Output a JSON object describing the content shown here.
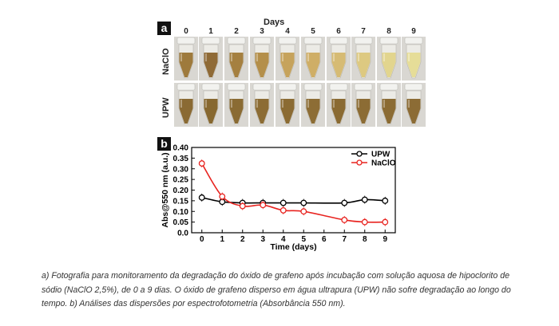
{
  "figure": {
    "panel_a_label": "a",
    "panel_b_label": "b",
    "days_title": "Days",
    "days": [
      "0",
      "1",
      "2",
      "3",
      "4",
      "5",
      "6",
      "7",
      "8",
      "9"
    ],
    "rows": [
      {
        "label": "NaClO",
        "tube_colors": [
          "#9e7a3c",
          "#8f6a36",
          "#a58040",
          "#b48f4a",
          "#c6a35c",
          "#cfae66",
          "#d6bb74",
          "#ddc981",
          "#e2d58e",
          "#e6dd98"
        ]
      },
      {
        "label": "UPW",
        "tube_colors": [
          "#8a6a33",
          "#876830",
          "#8a6b33",
          "#8c6c34",
          "#8b6b33",
          "#8d6d35",
          "#8a6a32",
          "#8c6c34",
          "#8b6b33",
          "#8c6c35"
        ]
      }
    ]
  },
  "chart_data": {
    "type": "line",
    "xlabel": "Time (days)",
    "ylabel": "Abs@550 nm (a.u.)",
    "xlim": [
      -0.5,
      9.5
    ],
    "ylim": [
      0.0,
      0.4
    ],
    "x_ticks": [
      "0",
      "1",
      "2",
      "3",
      "4",
      "5",
      "6",
      "7",
      "8",
      "9"
    ],
    "y_ticks": [
      "0.0",
      "0.05",
      "0.10",
      "0.15",
      "0.20",
      "0.25",
      "0.30",
      "0.35",
      "0.40"
    ],
    "legend_position": "top-right",
    "series": [
      {
        "name": "UPW",
        "color": "#000000",
        "x": [
          0,
          1,
          2,
          3,
          4,
          5,
          7,
          8,
          9
        ],
        "values": [
          0.165,
          0.145,
          0.14,
          0.14,
          0.14,
          0.14,
          0.14,
          0.155,
          0.15
        ]
      },
      {
        "name": "NaClO",
        "color": "#e8231f",
        "x": [
          0,
          1,
          2,
          3,
          4,
          5,
          7,
          8,
          9
        ],
        "values": [
          0.325,
          0.17,
          0.125,
          0.13,
          0.105,
          0.1,
          0.06,
          0.05,
          0.05
        ]
      }
    ]
  },
  "caption": "a) Fotografia para monitoramento da degradação do óxido de grafeno após incubação com solução aquosa de hipoclorito de sódio (NaClO 2,5%), de 0 a 9 dias. O óxido de grafeno disperso em água ultrapura (UPW) não sofre degradação ao longo do tempo. b) Análises das dispersões por espectrofotometria (Absorbância 550 nm)."
}
